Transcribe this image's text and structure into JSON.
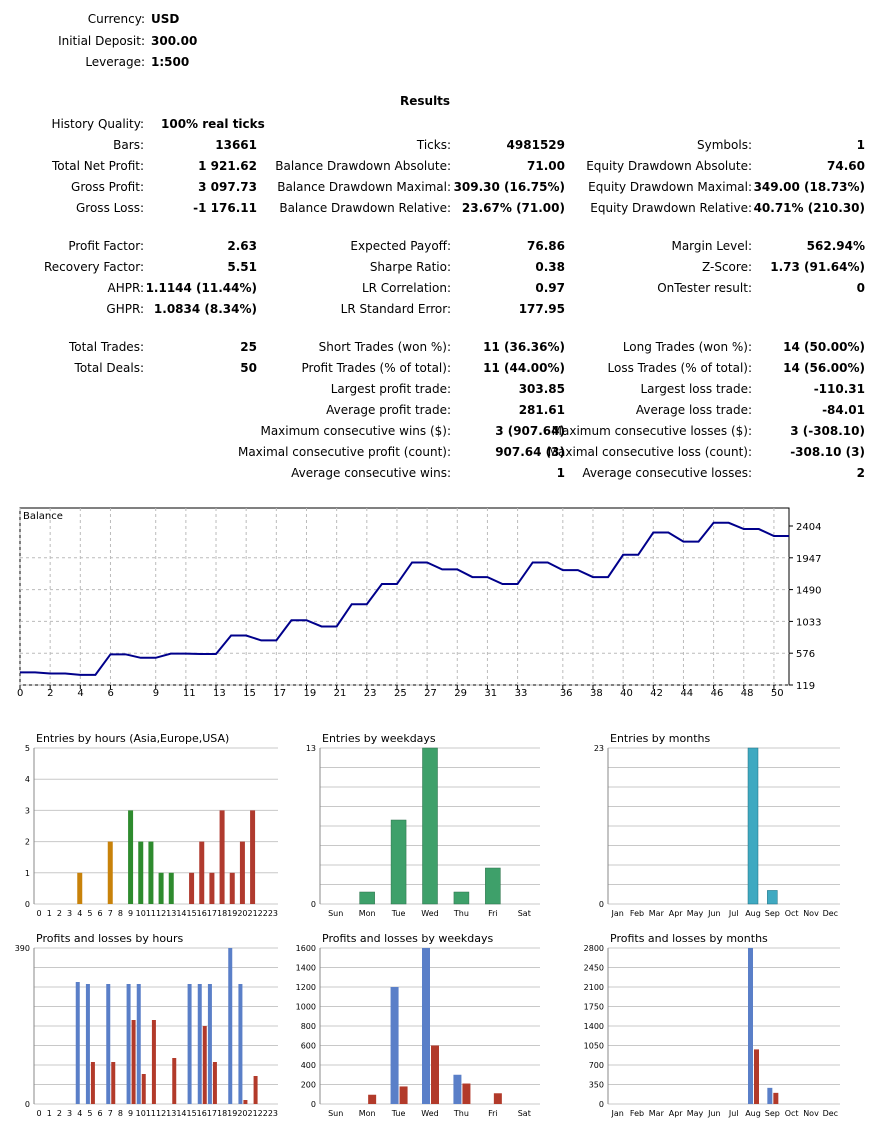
{
  "header": {
    "currency_label": "Currency:",
    "currency": "USD",
    "deposit_label": "Initial Deposit:",
    "deposit": "300.00",
    "leverage_label": "Leverage:",
    "leverage": "1:500"
  },
  "results_title": "Results",
  "history_quality": {
    "label": "History Quality:",
    "value": "100% real ticks"
  },
  "stats_col1": [
    {
      "label": "Bars:",
      "value": "13661"
    },
    {
      "label": "Total Net Profit:",
      "value": "1 921.62"
    },
    {
      "label": "Gross Profit:",
      "value": "3 097.73"
    },
    {
      "label": "Gross Loss:",
      "value": "-1 176.11"
    },
    {
      "label": "Profit Factor:",
      "value": "2.63"
    },
    {
      "label": "Recovery Factor:",
      "value": "5.51"
    },
    {
      "label": "AHPR:",
      "value": "1.1144 (11.44%)"
    },
    {
      "label": "GHPR:",
      "value": "1.0834 (8.34%)"
    },
    {
      "label": "Total Trades:",
      "value": "25"
    },
    {
      "label": "Total Deals:",
      "value": "50"
    }
  ],
  "stats_col2": [
    {
      "label": "Ticks:",
      "value": "4981529"
    },
    {
      "label": "Balance Drawdown Absolute:",
      "value": "71.00"
    },
    {
      "label": "Balance Drawdown Maximal:",
      "value": "309.30 (16.75%)"
    },
    {
      "label": "Balance Drawdown Relative:",
      "value": "23.67% (71.00)"
    },
    {
      "label": "Expected Payoff:",
      "value": "76.86"
    },
    {
      "label": "Sharpe Ratio:",
      "value": "0.38"
    },
    {
      "label": "LR Correlation:",
      "value": "0.97"
    },
    {
      "label": "LR Standard Error:",
      "value": "177.95"
    },
    {
      "label": "Short Trades (won %):",
      "value": "11 (36.36%)"
    },
    {
      "label": "Profit Trades (% of total):",
      "value": "11 (44.00%)"
    },
    {
      "label": "Largest profit trade:",
      "value": "303.85"
    },
    {
      "label": "Average profit trade:",
      "value": "281.61"
    },
    {
      "label": "Maximum consecutive wins ($):",
      "value": "3 (907.64)"
    },
    {
      "label": "Maximal consecutive profit (count):",
      "value": "907.64 (3)"
    },
    {
      "label": "Average consecutive wins:",
      "value": "1"
    }
  ],
  "stats_col3": [
    {
      "label": "Symbols:",
      "value": "1"
    },
    {
      "label": "Equity Drawdown Absolute:",
      "value": "74.60"
    },
    {
      "label": "Equity Drawdown Maximal:",
      "value": "349.00 (18.73%)"
    },
    {
      "label": "Equity Drawdown Relative:",
      "value": "40.71% (210.30)"
    },
    {
      "label": "Margin Level:",
      "value": "562.94%"
    },
    {
      "label": "Z-Score:",
      "value": "1.73 (91.64%)"
    },
    {
      "label": "OnTester result:",
      "value": "0"
    },
    {
      "label": "Long Trades (won %):",
      "value": "14 (50.00%)"
    },
    {
      "label": "Loss Trades (% of total):",
      "value": "14 (56.00%)"
    },
    {
      "label": "Largest loss trade:",
      "value": "-110.31"
    },
    {
      "label": "Average loss trade:",
      "value": "-84.01"
    },
    {
      "label": "Maximum consecutive losses ($):",
      "value": "3 (-308.10)"
    },
    {
      "label": "Maximal consecutive loss (count):",
      "value": "-308.10 (3)"
    },
    {
      "label": "Average consecutive losses:",
      "value": "2"
    }
  ],
  "colors": {
    "balance_line": "#00008b",
    "grid": "#c8c8c8",
    "orange": "#c8820a",
    "green": "#2e8b2e",
    "red": "#b03a2e",
    "wk_green": "#3ea06a",
    "teal": "#3fa9c1",
    "blue": "#5a7fc8",
    "loss_red": "#b23a2a"
  },
  "chart_data": [
    {
      "type": "line",
      "title": "Balance",
      "x_ticks": [
        "0",
        "2",
        "4",
        "6",
        "9",
        "11",
        "13",
        "15",
        "17",
        "19",
        "21",
        "23",
        "25",
        "27",
        "29",
        "31",
        "33",
        "36",
        "38",
        "40",
        "42",
        "44",
        "46",
        "48",
        "50"
      ],
      "y_ticks": [
        "2404",
        "1947",
        "1490",
        "1033",
        "576",
        "119"
      ],
      "ylim": [
        119,
        2404
      ],
      "xlim": [
        0,
        51
      ],
      "x": [
        0,
        1,
        2,
        3,
        4,
        5,
        6,
        7,
        8,
        9,
        10,
        11,
        12,
        13,
        14,
        15,
        16,
        17,
        18,
        19,
        20,
        21,
        22,
        23,
        24,
        25,
        26,
        27,
        28,
        29,
        30,
        31,
        32,
        33,
        34,
        35,
        36,
        37,
        38,
        39,
        40,
        41,
        42,
        43,
        44,
        45,
        46,
        47,
        48,
        49,
        50,
        51
      ],
      "values": [
        300,
        300,
        285,
        285,
        265,
        265,
        560,
        560,
        510,
        510,
        570,
        570,
        565,
        565,
        830,
        830,
        760,
        760,
        1050,
        1050,
        960,
        960,
        1280,
        1280,
        1570,
        1570,
        1880,
        1880,
        1780,
        1780,
        1670,
        1670,
        1570,
        1570,
        1880,
        1880,
        1770,
        1770,
        1670,
        1670,
        1990,
        1990,
        2310,
        2310,
        2180,
        2180,
        2450,
        2450,
        2360,
        2360,
        2260,
        2260
      ]
    },
    {
      "type": "bar",
      "title": "Entries by hours (Asia,Europe,USA)",
      "categories": [
        "0",
        "1",
        "2",
        "3",
        "4",
        "5",
        "6",
        "7",
        "8",
        "9",
        "10",
        "11",
        "12",
        "13",
        "14",
        "15",
        "16",
        "17",
        "18",
        "19",
        "20",
        "21",
        "22",
        "23"
      ],
      "values": [
        0,
        0,
        0,
        0,
        1,
        0,
        0,
        2,
        0,
        3,
        2,
        2,
        1,
        1,
        0,
        1,
        2,
        1,
        3,
        1,
        2,
        3,
        0,
        0
      ],
      "y_ticks": [
        "5",
        "4",
        "3",
        "2",
        "1",
        "0"
      ],
      "ylim": [
        0,
        5
      ]
    },
    {
      "type": "bar",
      "title": "Entries by weekdays",
      "categories": [
        "Sun",
        "Mon",
        "Tue",
        "Wed",
        "Thu",
        "Fri",
        "Sat"
      ],
      "values": [
        0,
        1,
        7,
        13,
        1,
        3,
        0
      ],
      "y_ticks": [
        "13",
        "0"
      ],
      "ylim": [
        0,
        13
      ]
    },
    {
      "type": "bar",
      "title": "Entries by months",
      "categories": [
        "Jan",
        "Feb",
        "Mar",
        "Apr",
        "May",
        "Jun",
        "Jul",
        "Aug",
        "Sep",
        "Oct",
        "Nov",
        "Dec"
      ],
      "values": [
        0,
        0,
        0,
        0,
        0,
        0,
        0,
        23,
        2,
        0,
        0,
        0
      ],
      "y_ticks": [
        "23",
        "0"
      ],
      "ylim": [
        0,
        23
      ]
    },
    {
      "type": "bar",
      "title": "Profits and losses by hours",
      "categories": [
        "0",
        "1",
        "2",
        "3",
        "4",
        "5",
        "6",
        "7",
        "8",
        "9",
        "10",
        "11",
        "12",
        "13",
        "14",
        "15",
        "16",
        "17",
        "18",
        "19",
        "20",
        "21",
        "22",
        "23"
      ],
      "series": [
        {
          "values": [
            0,
            0,
            0,
            0,
            305,
            300,
            0,
            300,
            0,
            300,
            300,
            0,
            0,
            0,
            0,
            300,
            300,
            300,
            0,
            390,
            300,
            0,
            0,
            0
          ]
        },
        {
          "values": [
            0,
            0,
            0,
            0,
            0,
            105,
            0,
            105,
            0,
            210,
            75,
            210,
            0,
            115,
            0,
            0,
            195,
            105,
            0,
            0,
            10,
            70,
            0,
            0
          ]
        }
      ],
      "y_ticks": [
        "390",
        "0"
      ],
      "ylim": [
        0,
        390
      ]
    },
    {
      "type": "bar",
      "title": "Profits and losses by weekdays",
      "categories": [
        "Sun",
        "Mon",
        "Tue",
        "Wed",
        "Thu",
        "Fri",
        "Sat"
      ],
      "series": [
        {
          "values": [
            0,
            0,
            1200,
            1600,
            300,
            0,
            0
          ]
        },
        {
          "values": [
            0,
            95,
            180,
            600,
            210,
            110,
            0
          ]
        }
      ],
      "y_ticks": [
        "1600",
        "1400",
        "1200",
        "1000",
        "800",
        "600",
        "400",
        "200",
        "0"
      ],
      "ylim": [
        0,
        1600
      ]
    },
    {
      "type": "bar",
      "title": "Profits and losses by months",
      "categories": [
        "Jan",
        "Feb",
        "Mar",
        "Apr",
        "May",
        "Jun",
        "Jul",
        "Aug",
        "Sep",
        "Oct",
        "Nov",
        "Dec"
      ],
      "series": [
        {
          "values": [
            0,
            0,
            0,
            0,
            0,
            0,
            0,
            2800,
            290,
            0,
            0,
            0
          ]
        },
        {
          "values": [
            0,
            0,
            0,
            0,
            0,
            0,
            0,
            980,
            200,
            0,
            0,
            0
          ]
        }
      ],
      "y_ticks": [
        "2800",
        "2450",
        "2100",
        "1750",
        "1400",
        "1050",
        "700",
        "350",
        "0"
      ],
      "ylim": [
        0,
        2800
      ]
    }
  ]
}
